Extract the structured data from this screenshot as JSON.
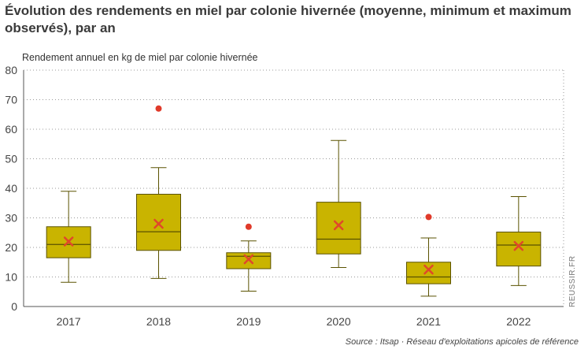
{
  "title": "Évolution des rendements en miel par colonie hivernée (moyenne, minimum et maximum observés), par an",
  "source": "Source : Itsap · Réseau d'exploitations apicoles de référence",
  "watermark": "REUSSIR.FR",
  "chart_data": {
    "type": "box",
    "ylabel": "Rendement annuel en kg de miel par colonie hivernée",
    "xlabel": "",
    "ylim": [
      0,
      80
    ],
    "yticks": [
      0,
      10,
      20,
      30,
      40,
      50,
      60,
      70,
      80
    ],
    "grid": "horizontal-dotted",
    "colors": {
      "box": "#c9b400",
      "box_edge": "#5a5200",
      "mean": "#e0482a",
      "outlier": "#e03a2a"
    },
    "categories": [
      "2017",
      "2018",
      "2019",
      "2020",
      "2021",
      "2022"
    ],
    "boxes": [
      {
        "year": "2017",
        "min": 8.2,
        "q1": 16.5,
        "median": 21,
        "q3": 27,
        "max": 39,
        "mean": 22,
        "outliers": []
      },
      {
        "year": "2018",
        "min": 9.5,
        "q1": 19,
        "median": 25.3,
        "q3": 38,
        "max": 47,
        "mean": 28,
        "outliers": [
          67
        ]
      },
      {
        "year": "2019",
        "min": 5.2,
        "q1": 12.8,
        "median": 17,
        "q3": 18.2,
        "max": 22.2,
        "mean": 16,
        "outliers": [
          27
        ]
      },
      {
        "year": "2020",
        "min": 13.2,
        "q1": 17.8,
        "median": 22.8,
        "q3": 35.3,
        "max": 56.2,
        "mean": 27.5,
        "outliers": []
      },
      {
        "year": "2021",
        "min": 3.5,
        "q1": 7.7,
        "median": 10,
        "q3": 15,
        "max": 23.2,
        "mean": 12.5,
        "outliers": [
          30.3
        ]
      },
      {
        "year": "2022",
        "min": 7.1,
        "q1": 13.7,
        "median": 20.8,
        "q3": 25.2,
        "max": 37.2,
        "mean": 20.5,
        "outliers": []
      }
    ]
  }
}
